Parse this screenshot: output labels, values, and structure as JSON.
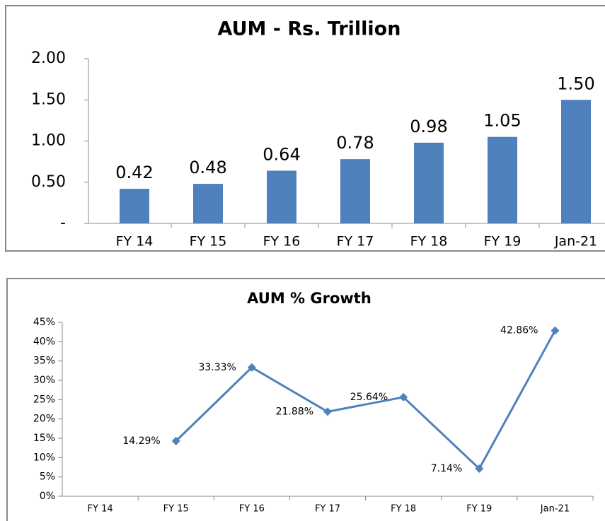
{
  "chart_data": [
    {
      "type": "bar",
      "title": "AUM - Rs. Trillion",
      "categories": [
        "FY 14",
        "FY 15",
        "FY 16",
        "FY 17",
        "FY 18",
        "FY 19",
        "Jan-21"
      ],
      "values": [
        0.42,
        0.48,
        0.64,
        0.78,
        0.98,
        1.05,
        1.5
      ],
      "value_labels": [
        "0.42",
        "0.48",
        "0.64",
        "0.78",
        "0.98",
        "1.05",
        "1.50"
      ],
      "color": "#4f81bd",
      "ylim": [
        0,
        2
      ],
      "yticks": [
        {
          "value": 0,
          "label": "-"
        },
        {
          "value": 0.5,
          "label": "0.50"
        },
        {
          "value": 1,
          "label": "1.00"
        },
        {
          "value": 1.5,
          "label": "1.50"
        },
        {
          "value": 2,
          "label": "2.00"
        }
      ]
    },
    {
      "type": "line",
      "title": "AUM % Growth",
      "categories": [
        "FY 14",
        "FY 15",
        "FY 16",
        "FY 17",
        "FY 18",
        "FY 19",
        "Jan-21"
      ],
      "values": [
        null,
        14.29,
        33.33,
        21.88,
        25.64,
        7.14,
        42.86
      ],
      "value_labels": [
        null,
        "14.29%",
        "33.33%",
        "21.88%",
        "25.64%",
        "7.14%",
        "42.86%"
      ],
      "color": "#4f81bd",
      "ylim": [
        0,
        45
      ],
      "yticks": [
        {
          "value": 0,
          "label": "0%"
        },
        {
          "value": 5,
          "label": "5%"
        },
        {
          "value": 10,
          "label": "10%"
        },
        {
          "value": 15,
          "label": "15%"
        },
        {
          "value": 20,
          "label": "20%"
        },
        {
          "value": 25,
          "label": "25%"
        },
        {
          "value": 30,
          "label": "30%"
        },
        {
          "value": 35,
          "label": "35%"
        },
        {
          "value": 40,
          "label": "40%"
        },
        {
          "value": 45,
          "label": "45%"
        }
      ]
    }
  ]
}
